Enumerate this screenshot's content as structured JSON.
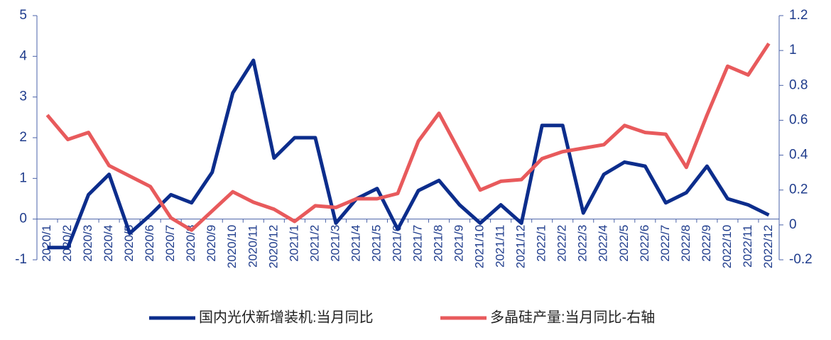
{
  "chart_data": {
    "type": "line",
    "categories": [
      "2020/1",
      "2020/2",
      "2020/3",
      "2020/4",
      "2020/5",
      "2020/6",
      "2020/7",
      "2020/8",
      "2020/9",
      "2020/10",
      "2020/11",
      "2020/12",
      "2021/1",
      "2021/2",
      "2021/3",
      "2021/4",
      "2021/5",
      "2021/6",
      "2021/7",
      "2021/8",
      "2021/9",
      "2021/10",
      "2021/11",
      "2021/12",
      "2022/1",
      "2022/2",
      "2022/3",
      "2022/4",
      "2022/5",
      "2022/6",
      "2022/7",
      "2022/8",
      "2022/9",
      "2022/10",
      "2022/11",
      "2022/12"
    ],
    "series": [
      {
        "name": "国内光伏新增装机:当月同比",
        "color": "#0c2d8c",
        "values": [
          -0.7,
          -0.7,
          0.6,
          1.1,
          -0.35,
          0.1,
          0.6,
          0.4,
          1.15,
          3.1,
          3.9,
          1.5,
          2.0,
          2.0,
          -0.1,
          0.5,
          0.75,
          -0.25,
          0.7,
          0.95,
          0.35,
          -0.1,
          0.35,
          -0.1,
          2.3,
          2.3,
          0.15,
          1.1,
          1.4,
          1.3,
          0.4,
          0.65,
          1.3,
          0.5,
          0.35,
          0.1
        ]
      },
      {
        "name": "多晶硅产量:当月同比-右轴",
        "color": "#e85a5c",
        "axis": "y2",
        "values": [
          0.63,
          0.49,
          0.53,
          0.34,
          0.28,
          0.22,
          0.04,
          -0.03,
          0.08,
          0.19,
          0.13,
          0.09,
          0.02,
          0.11,
          0.1,
          0.15,
          0.15,
          0.18,
          0.48,
          0.64,
          0.42,
          0.2,
          0.25,
          0.26,
          0.38,
          0.42,
          0.44,
          0.46,
          0.57,
          0.53,
          0.52,
          0.33,
          0.63,
          0.91,
          0.86,
          1.04
        ]
      }
    ],
    "ylim": [
      -1,
      5
    ],
    "yticks": [
      -1,
      0,
      1,
      2,
      3,
      4,
      5
    ],
    "y2lim": [
      -0.2,
      1.2
    ],
    "y2ticks": [
      -0.2,
      0,
      0.2,
      0.4,
      0.6,
      0.8,
      1,
      1.2
    ],
    "legend": "bottom"
  }
}
